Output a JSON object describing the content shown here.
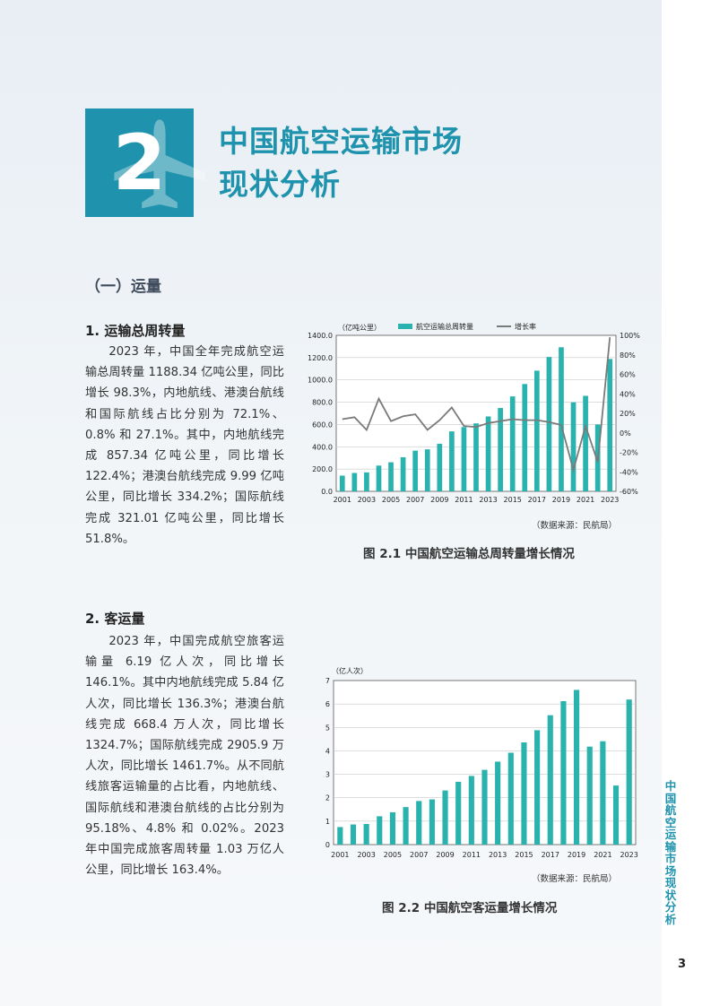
{
  "chapter": {
    "number": "2",
    "title_line1": "中国航空运输市场",
    "title_line2": "现状分析"
  },
  "section_title": "（一）运量",
  "sub1": {
    "title": "1.  运输总周转量",
    "text": "2023 年，中国全年完成航空运输总周转量 1188.34 亿吨公里，同比增长 98.3%，内地航线、港澳台航线和国际航线占比分别为 72.1%、0.8% 和 27.1%。其中，内地航线完成 857.34 亿吨公里，同比增长 122.4%；港澳台航线完成 9.99 亿吨公里，同比增长 334.2%；国际航线完成 321.01 亿吨公里，同比增长 51.8%。"
  },
  "sub2": {
    "title": "2.  客运量",
    "text": "2023 年，中国完成航空旅客运输量 6.19 亿人次，同比增长 146.1%。其中内地航线完成 5.84 亿人次，同比增长 136.3%；港澳台航线完成 668.4 万人次，同比增长 1324.7%；国际航线完成 2905.9 万人次，同比增长 1461.7%。从不同航线旅客运输量的占比看，内地航线、国际航线和港澳台航线的占比分别为 95.18%、4.8% 和 0.02%。2023 年中国完成旅客周转量 1.03 万亿人公里，同比增长 163.4%。"
  },
  "figure1": {
    "caption": "图 2.1 中国航空运输总周转量增长情况",
    "source": "（数据来源：民航局）"
  },
  "figure2": {
    "caption": "图 2.2 中国航空客运量增长情况",
    "source": "（数据来源：民航局）"
  },
  "side_text": "中国航空运输市场现状分析",
  "page_number": "3",
  "colors": {
    "accent": "#1f93ad",
    "bar": "#2ab3ae",
    "line": "#7a7a7a"
  },
  "chart_data": [
    {
      "type": "bar",
      "title": "",
      "y_unit": "（亿吨公里）",
      "y2_unit": "",
      "categories": [
        "2001",
        "2002",
        "2003",
        "2004",
        "2005",
        "2006",
        "2007",
        "2008",
        "2009",
        "2010",
        "2011",
        "2012",
        "2013",
        "2014",
        "2015",
        "2016",
        "2017",
        "2018",
        "2019",
        "2020",
        "2021",
        "2022",
        "2023"
      ],
      "x_tick_labels": [
        "2001",
        "2003",
        "2005",
        "2007",
        "2009",
        "2011",
        "2013",
        "2015",
        "2017",
        "2019",
        "2021",
        "2023"
      ],
      "y_ticks": [
        "0.0",
        "200.0",
        "400.0",
        "600.0",
        "800.0",
        "1000.0",
        "1200.0",
        "1400.0"
      ],
      "y2_ticks": [
        "-60%",
        "-40%",
        "-20%",
        "0%",
        "20%",
        "40%",
        "60%",
        "80%",
        "100%"
      ],
      "ylim": [
        0,
        1400
      ],
      "y2lim": [
        -60,
        100
      ],
      "grid": true,
      "legend_position": "top",
      "series": [
        {
          "name": "航空运输总周转量",
          "kind": "bar",
          "axis": "left",
          "values": [
            141,
            165,
            170,
            231,
            261,
            306,
            365,
            377,
            427,
            538,
            577,
            610,
            672,
            748,
            852,
            963,
            1083,
            1206,
            1293,
            799,
            857,
            600,
            1188
          ]
        },
        {
          "name": "增长率",
          "kind": "line",
          "axis": "right",
          "values": [
            14,
            16,
            3,
            35,
            12,
            17,
            19,
            3,
            13,
            26,
            7,
            6,
            10,
            12,
            14,
            13,
            13,
            11,
            8,
            -38,
            7,
            -30,
            98
          ]
        }
      ]
    },
    {
      "type": "bar",
      "title": "",
      "y_unit": "（亿人次）",
      "categories": [
        "2001",
        "2002",
        "2003",
        "2004",
        "2005",
        "2006",
        "2007",
        "2008",
        "2009",
        "2010",
        "2011",
        "2012",
        "2013",
        "2014",
        "2015",
        "2016",
        "2017",
        "2018",
        "2019",
        "2020",
        "2021",
        "2022",
        "2023"
      ],
      "x_tick_labels": [
        "2001",
        "2003",
        "2005",
        "2007",
        "2009",
        "2011",
        "2013",
        "2015",
        "2017",
        "2019",
        "2021",
        "2023"
      ],
      "y_ticks": [
        "0",
        "1",
        "2",
        "3",
        "4",
        "5",
        "6",
        "7"
      ],
      "ylim": [
        0,
        7
      ],
      "grid": true,
      "series": [
        {
          "name": "",
          "kind": "bar",
          "axis": "left",
          "values": [
            0.75,
            0.86,
            0.88,
            1.21,
            1.38,
            1.6,
            1.86,
            1.93,
            2.31,
            2.68,
            2.93,
            3.19,
            3.54,
            3.92,
            4.36,
            4.88,
            5.52,
            6.12,
            6.6,
            4.18,
            4.41,
            2.52,
            6.19
          ]
        }
      ]
    }
  ]
}
